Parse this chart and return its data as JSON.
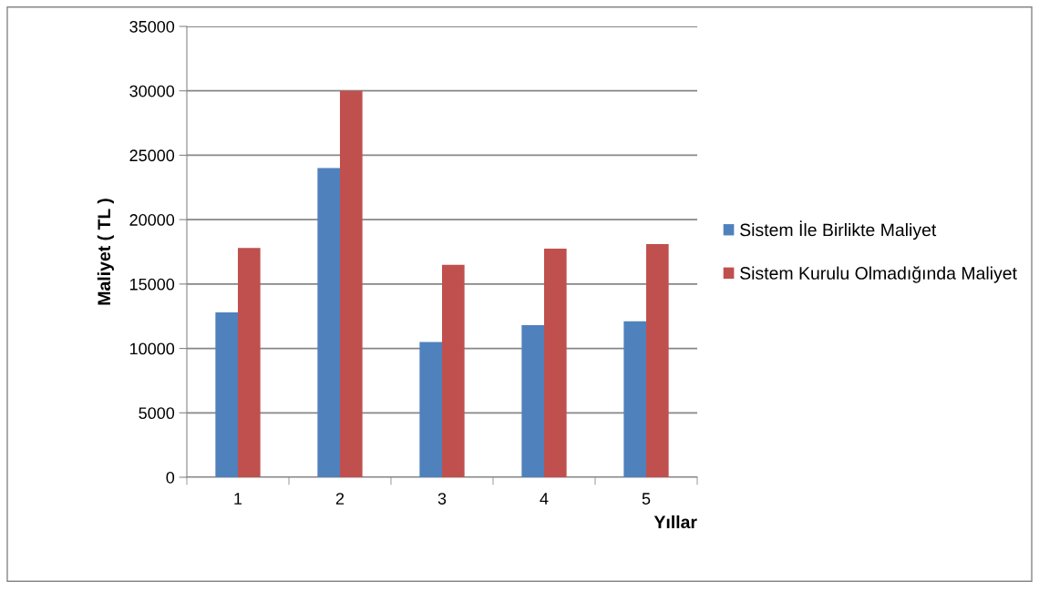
{
  "chart_data": {
    "type": "bar",
    "xlabel": "Yıllar",
    "ylabel": "Maliyet ( TL )",
    "categories": [
      "1",
      "2",
      "3",
      "4",
      "5"
    ],
    "series": [
      {
        "name": "Sistem İle Birlikte Maliyet",
        "color": "#4f81bd",
        "values": [
          12800,
          24000,
          10500,
          11800,
          12100
        ]
      },
      {
        "name": "Sistem Kurulu Olmadığında Maliyet",
        "color": "#c0504d",
        "values": [
          17800,
          30000,
          16500,
          17750,
          18100
        ]
      }
    ],
    "ylim": [
      0,
      35000
    ],
    "yticks": [
      0,
      5000,
      10000,
      15000,
      20000,
      25000,
      30000,
      35000
    ],
    "grid": "y",
    "legend": "right"
  }
}
